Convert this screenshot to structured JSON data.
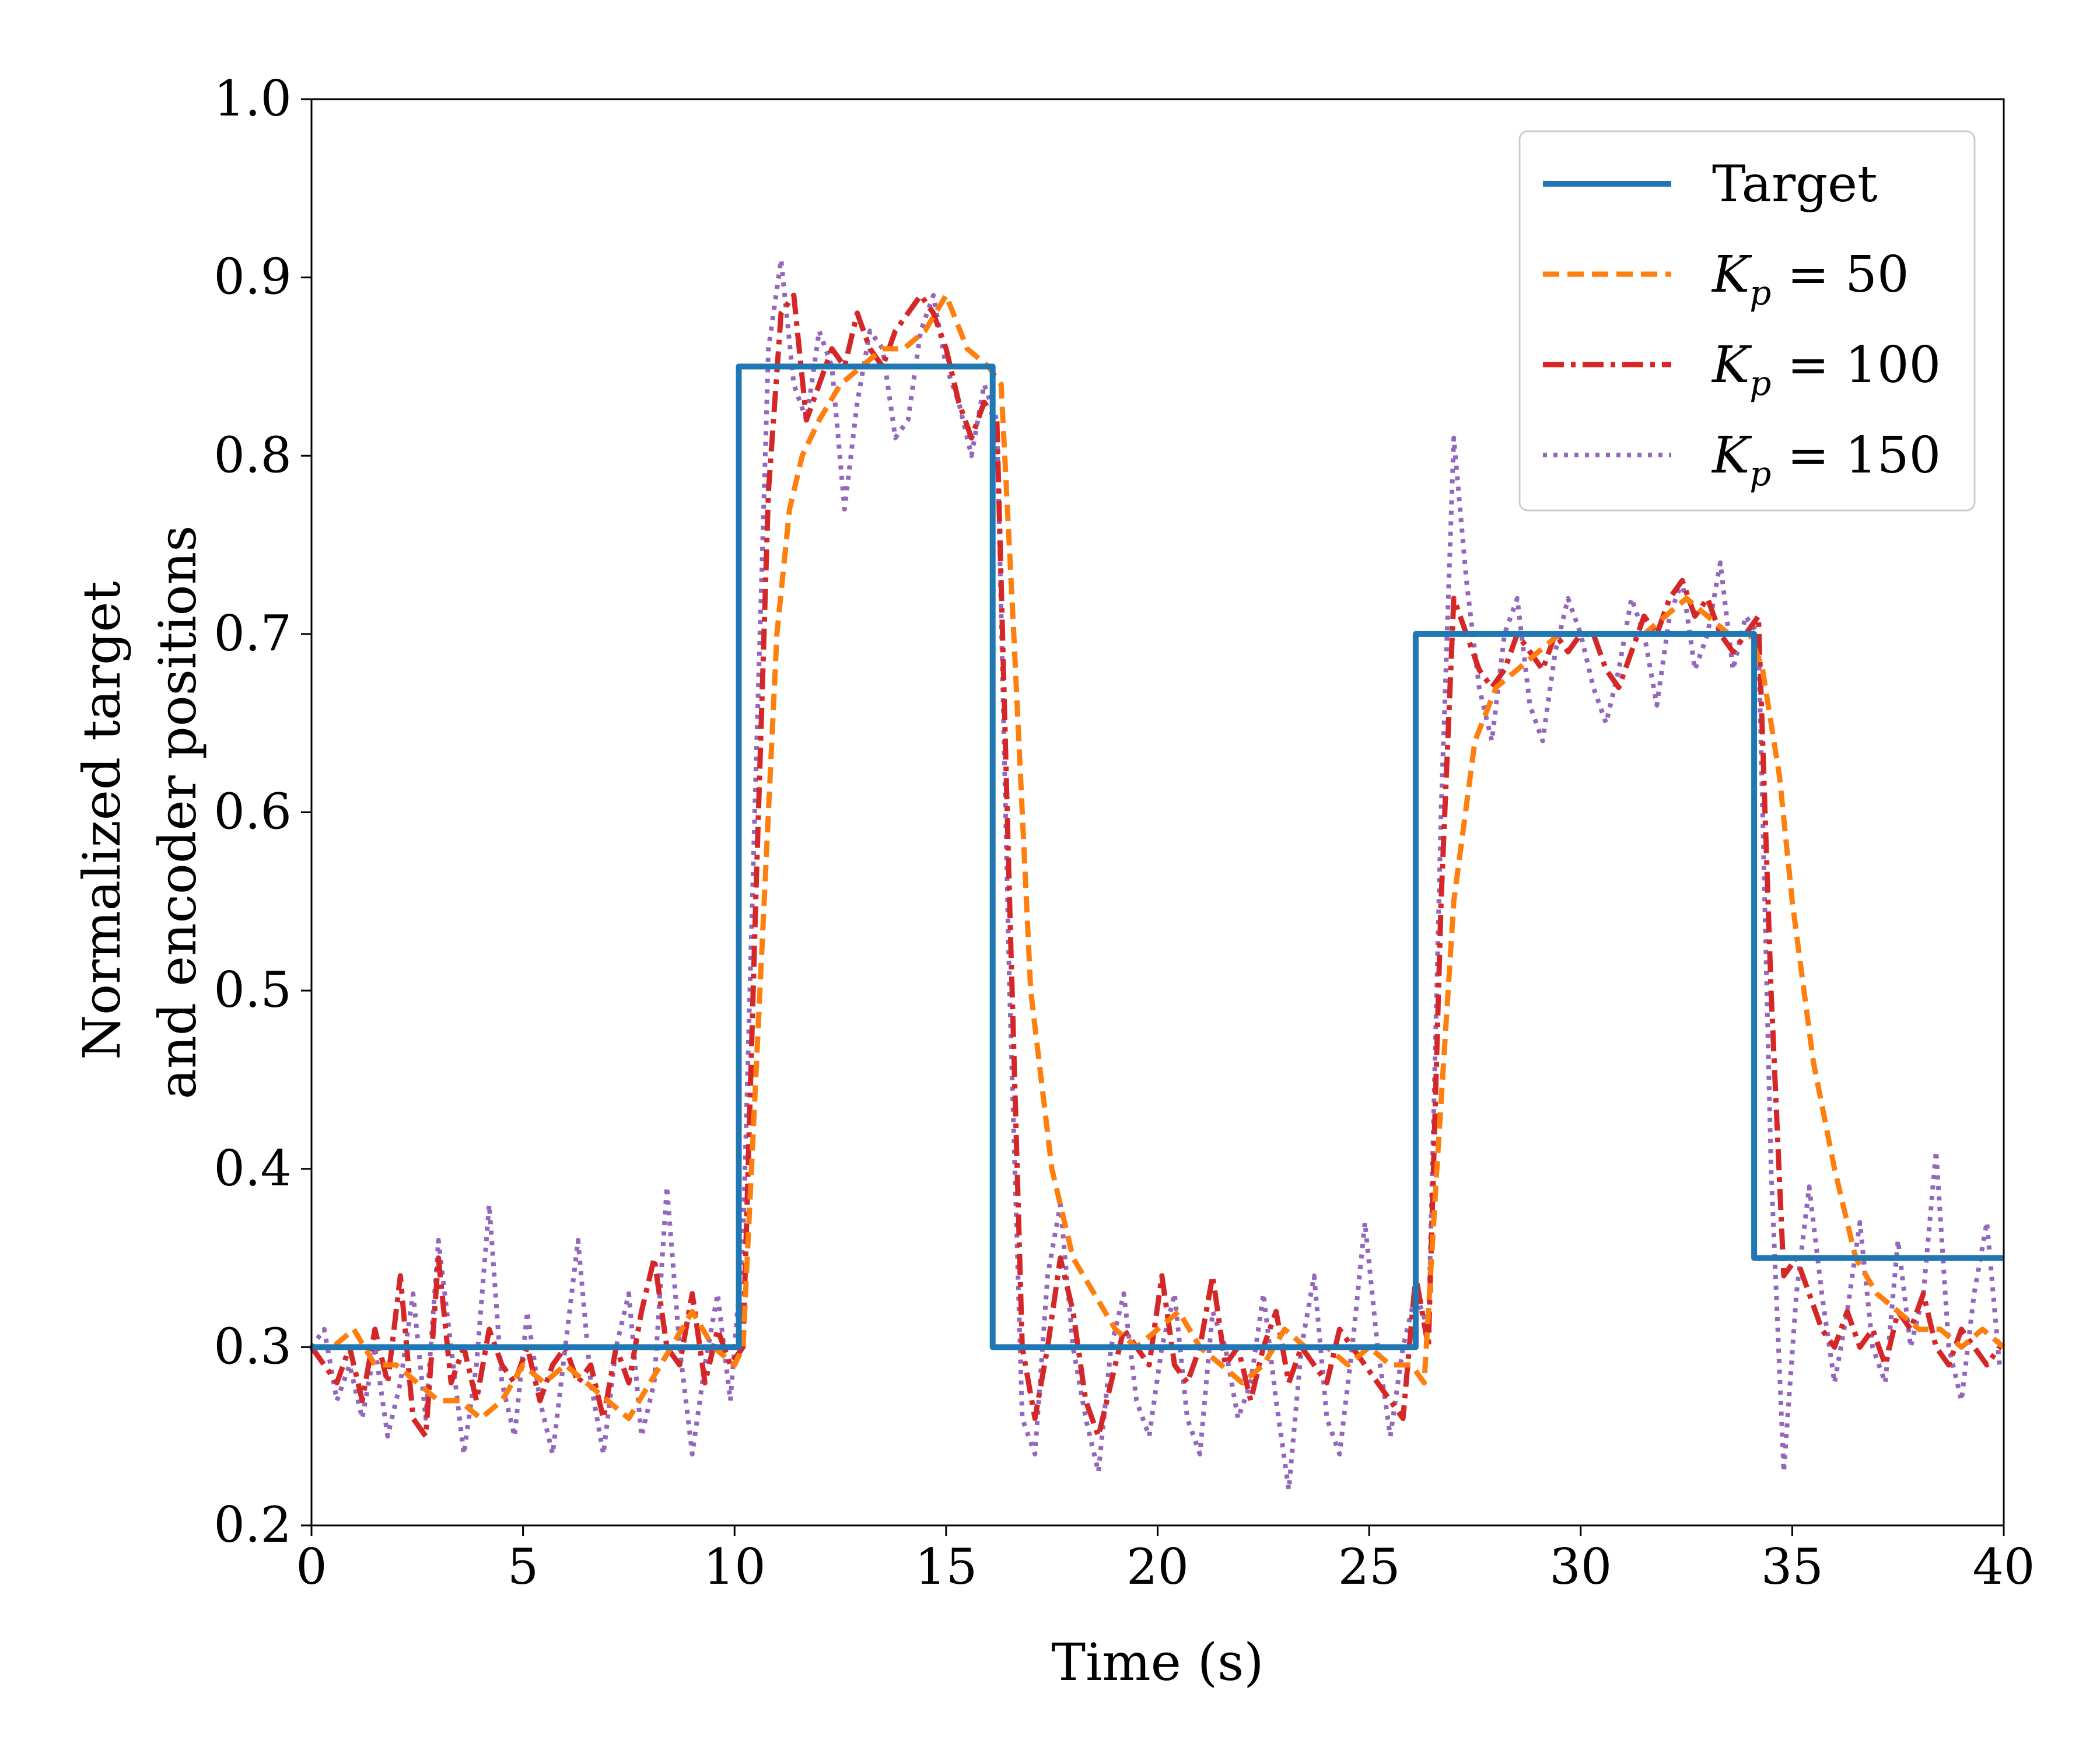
{
  "chart_data": {
    "type": "line",
    "title": "",
    "xlabel": "Time (s)",
    "ylabel_lines": [
      "Normalized target",
      "and encoder positions"
    ],
    "xlim": [
      0,
      40
    ],
    "ylim": [
      0.2,
      1.0
    ],
    "xticks": [
      0,
      5,
      10,
      15,
      20,
      25,
      30,
      35,
      40
    ],
    "xtick_labels": [
      "0",
      "5",
      "10",
      "15",
      "20",
      "25",
      "30",
      "35",
      "40"
    ],
    "yticks": [
      0.2,
      0.3,
      0.4,
      0.5,
      0.6,
      0.7,
      0.8,
      0.9,
      1.0
    ],
    "ytick_labels": [
      "0.2",
      "0.3",
      "0.4",
      "0.5",
      "0.6",
      "0.7",
      "0.8",
      "0.9",
      "1.0"
    ],
    "grid": false,
    "legend_position": "top-right",
    "series": [
      {
        "name": "Target",
        "label_main": "Target",
        "label_sub": "",
        "label_rest": "",
        "color": "#1f77b4",
        "style": "solid",
        "step": true,
        "x": [
          0,
          10.1,
          10.1,
          16.1,
          16.1,
          26.1,
          26.1,
          34.1,
          34.1,
          40
        ],
        "y": [
          0.3,
          0.3,
          0.85,
          0.85,
          0.3,
          0.3,
          0.7,
          0.7,
          0.35,
          0.35
        ]
      },
      {
        "name": "K_p = 50",
        "label_main": "K",
        "label_sub": "p",
        "label_rest": " = 50",
        "color": "#ff7f0e",
        "style": "dashed",
        "step": false,
        "x": [
          0,
          0.5,
          1,
          1.5,
          2,
          2.5,
          3,
          3.5,
          4,
          4.5,
          5,
          5.5,
          6,
          6.5,
          7,
          7.5,
          8,
          8.5,
          9,
          9.5,
          10,
          10.2,
          10.5,
          10.8,
          11,
          11.3,
          11.6,
          12,
          12.5,
          13,
          13.5,
          14,
          14.5,
          15,
          15.5,
          16,
          16.3,
          16.6,
          17,
          17.5,
          18,
          18.5,
          19,
          19.5,
          20,
          20.5,
          21,
          21.5,
          22,
          22.5,
          23,
          23.5,
          24,
          24.5,
          25,
          25.5,
          26,
          26.3,
          26.6,
          27,
          27.5,
          28,
          28.5,
          29,
          29.5,
          30,
          30.5,
          31,
          31.5,
          32,
          32.5,
          33,
          33.5,
          34,
          34.3,
          34.7,
          35,
          35.5,
          36,
          36.5,
          37,
          37.5,
          38,
          38.5,
          39,
          39.5,
          40
        ],
        "y": [
          0.3,
          0.3,
          0.31,
          0.29,
          0.29,
          0.28,
          0.27,
          0.27,
          0.26,
          0.27,
          0.29,
          0.28,
          0.29,
          0.28,
          0.27,
          0.26,
          0.28,
          0.3,
          0.32,
          0.3,
          0.29,
          0.3,
          0.45,
          0.6,
          0.7,
          0.77,
          0.8,
          0.82,
          0.84,
          0.85,
          0.86,
          0.86,
          0.87,
          0.89,
          0.86,
          0.85,
          0.84,
          0.7,
          0.5,
          0.4,
          0.35,
          0.33,
          0.31,
          0.3,
          0.31,
          0.32,
          0.3,
          0.29,
          0.28,
          0.29,
          0.31,
          0.3,
          0.3,
          0.29,
          0.3,
          0.29,
          0.29,
          0.28,
          0.4,
          0.55,
          0.64,
          0.67,
          0.68,
          0.69,
          0.7,
          0.7,
          0.7,
          0.7,
          0.7,
          0.71,
          0.72,
          0.71,
          0.7,
          0.7,
          0.68,
          0.62,
          0.55,
          0.46,
          0.4,
          0.35,
          0.33,
          0.32,
          0.31,
          0.31,
          0.3,
          0.31,
          0.3
        ]
      },
      {
        "name": "K_p = 100",
        "label_main": "K",
        "label_sub": "p",
        "label_rest": " = 100",
        "color": "#d62728",
        "style": "dashdot",
        "step": false,
        "x": [
          0,
          0.3,
          0.6,
          0.9,
          1.2,
          1.5,
          1.8,
          2.1,
          2.4,
          2.7,
          3.0,
          3.3,
          3.6,
          3.9,
          4.2,
          4.5,
          4.8,
          5.1,
          5.4,
          5.7,
          6.0,
          6.3,
          6.6,
          6.9,
          7.2,
          7.5,
          7.8,
          8.1,
          8.4,
          8.7,
          9.0,
          9.3,
          9.6,
          9.9,
          10.2,
          10.5,
          10.8,
          11.1,
          11.4,
          11.7,
          12.0,
          12.3,
          12.6,
          12.9,
          13.2,
          13.5,
          13.8,
          14.1,
          14.4,
          14.7,
          15.0,
          15.3,
          15.6,
          15.9,
          16.2,
          16.5,
          16.8,
          17.1,
          17.4,
          17.7,
          18.0,
          18.3,
          18.6,
          18.9,
          19.2,
          19.5,
          19.8,
          20.1,
          20.4,
          20.7,
          21.0,
          21.3,
          21.6,
          21.9,
          22.2,
          22.5,
          22.8,
          23.1,
          23.4,
          23.7,
          24.0,
          24.3,
          24.6,
          24.9,
          25.2,
          25.5,
          25.8,
          26.1,
          26.4,
          26.7,
          27.0,
          27.3,
          27.6,
          27.9,
          28.2,
          28.5,
          28.8,
          29.1,
          29.4,
          29.7,
          30.0,
          30.3,
          30.6,
          30.9,
          31.2,
          31.5,
          31.8,
          32.1,
          32.4,
          32.7,
          33.0,
          33.3,
          33.6,
          33.9,
          34.2,
          34.5,
          34.8,
          35.1,
          35.4,
          35.7,
          36.0,
          36.3,
          36.6,
          36.9,
          37.2,
          37.5,
          37.8,
          38.1,
          38.4,
          38.7,
          39.0,
          39.3,
          39.6,
          39.9
        ],
        "y": [
          0.3,
          0.29,
          0.28,
          0.3,
          0.27,
          0.31,
          0.28,
          0.34,
          0.26,
          0.25,
          0.35,
          0.28,
          0.3,
          0.27,
          0.31,
          0.29,
          0.28,
          0.3,
          0.27,
          0.29,
          0.3,
          0.28,
          0.29,
          0.26,
          0.3,
          0.28,
          0.32,
          0.35,
          0.3,
          0.29,
          0.33,
          0.28,
          0.31,
          0.29,
          0.3,
          0.55,
          0.78,
          0.88,
          0.89,
          0.82,
          0.84,
          0.86,
          0.85,
          0.88,
          0.86,
          0.85,
          0.87,
          0.88,
          0.89,
          0.88,
          0.86,
          0.83,
          0.81,
          0.83,
          0.82,
          0.55,
          0.3,
          0.26,
          0.3,
          0.35,
          0.32,
          0.27,
          0.25,
          0.28,
          0.31,
          0.3,
          0.29,
          0.34,
          0.29,
          0.28,
          0.3,
          0.34,
          0.29,
          0.3,
          0.27,
          0.3,
          0.32,
          0.28,
          0.3,
          0.29,
          0.28,
          0.31,
          0.3,
          0.29,
          0.28,
          0.27,
          0.26,
          0.34,
          0.3,
          0.55,
          0.72,
          0.7,
          0.68,
          0.67,
          0.68,
          0.7,
          0.69,
          0.68,
          0.7,
          0.69,
          0.7,
          0.7,
          0.68,
          0.67,
          0.69,
          0.71,
          0.7,
          0.72,
          0.73,
          0.71,
          0.72,
          0.7,
          0.69,
          0.7,
          0.71,
          0.5,
          0.34,
          0.35,
          0.33,
          0.31,
          0.3,
          0.32,
          0.3,
          0.31,
          0.29,
          0.32,
          0.31,
          0.33,
          0.3,
          0.29,
          0.31,
          0.3,
          0.29,
          0.3
        ]
      },
      {
        "name": "K_p = 150",
        "label_main": "K",
        "label_sub": "p",
        "label_rest": " = 150",
        "color": "#9467bd",
        "style": "dotted",
        "step": false,
        "x": [
          0,
          0.3,
          0.6,
          0.9,
          1.2,
          1.5,
          1.8,
          2.1,
          2.4,
          2.7,
          3.0,
          3.3,
          3.6,
          3.9,
          4.2,
          4.5,
          4.8,
          5.1,
          5.4,
          5.7,
          6.0,
          6.3,
          6.6,
          6.9,
          7.2,
          7.5,
          7.8,
          8.1,
          8.4,
          8.7,
          9.0,
          9.3,
          9.6,
          9.9,
          10.2,
          10.5,
          10.8,
          11.1,
          11.4,
          11.7,
          12.0,
          12.3,
          12.6,
          12.9,
          13.2,
          13.5,
          13.8,
          14.1,
          14.4,
          14.7,
          15.0,
          15.3,
          15.6,
          15.9,
          16.2,
          16.5,
          16.8,
          17.1,
          17.4,
          17.7,
          18.0,
          18.3,
          18.6,
          18.9,
          19.2,
          19.5,
          19.8,
          20.1,
          20.4,
          20.7,
          21.0,
          21.3,
          21.6,
          21.9,
          22.2,
          22.5,
          22.8,
          23.1,
          23.4,
          23.7,
          24.0,
          24.3,
          24.6,
          24.9,
          25.2,
          25.5,
          25.8,
          26.1,
          26.4,
          26.7,
          27.0,
          27.3,
          27.6,
          27.9,
          28.2,
          28.5,
          28.8,
          29.1,
          29.4,
          29.7,
          30.0,
          30.3,
          30.6,
          30.9,
          31.2,
          31.5,
          31.8,
          32.1,
          32.4,
          32.7,
          33.0,
          33.3,
          33.6,
          33.9,
          34.2,
          34.5,
          34.8,
          35.1,
          35.4,
          35.7,
          36.0,
          36.3,
          36.6,
          36.9,
          37.2,
          37.5,
          37.8,
          38.1,
          38.4,
          38.7,
          39.0,
          39.3,
          39.6,
          39.9
        ],
        "y": [
          0.3,
          0.31,
          0.27,
          0.29,
          0.26,
          0.3,
          0.25,
          0.28,
          0.33,
          0.26,
          0.36,
          0.3,
          0.24,
          0.29,
          0.38,
          0.28,
          0.25,
          0.32,
          0.27,
          0.24,
          0.3,
          0.36,
          0.28,
          0.24,
          0.3,
          0.33,
          0.25,
          0.28,
          0.39,
          0.3,
          0.24,
          0.29,
          0.33,
          0.27,
          0.36,
          0.62,
          0.86,
          0.91,
          0.84,
          0.82,
          0.87,
          0.85,
          0.77,
          0.83,
          0.87,
          0.86,
          0.81,
          0.82,
          0.87,
          0.89,
          0.85,
          0.83,
          0.8,
          0.84,
          0.82,
          0.5,
          0.26,
          0.24,
          0.34,
          0.38,
          0.3,
          0.26,
          0.23,
          0.3,
          0.33,
          0.27,
          0.25,
          0.3,
          0.33,
          0.26,
          0.24,
          0.32,
          0.3,
          0.26,
          0.28,
          0.33,
          0.27,
          0.22,
          0.3,
          0.34,
          0.26,
          0.24,
          0.3,
          0.37,
          0.3,
          0.25,
          0.3,
          0.33,
          0.31,
          0.6,
          0.81,
          0.73,
          0.67,
          0.64,
          0.7,
          0.72,
          0.66,
          0.64,
          0.69,
          0.72,
          0.7,
          0.67,
          0.65,
          0.68,
          0.72,
          0.7,
          0.66,
          0.71,
          0.73,
          0.68,
          0.7,
          0.74,
          0.68,
          0.71,
          0.7,
          0.4,
          0.23,
          0.33,
          0.39,
          0.33,
          0.28,
          0.32,
          0.37,
          0.3,
          0.28,
          0.36,
          0.3,
          0.33,
          0.41,
          0.3,
          0.27,
          0.33,
          0.37,
          0.29
        ]
      }
    ]
  }
}
